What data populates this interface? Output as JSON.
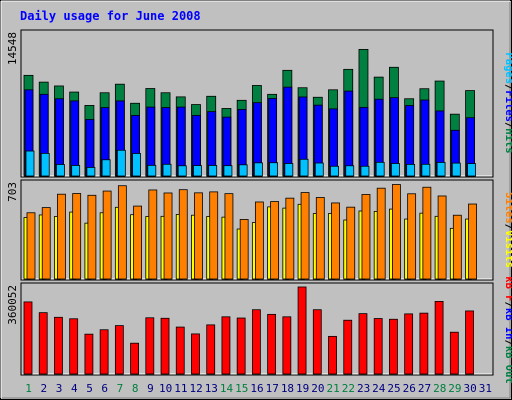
{
  "chart_data": {
    "type": "bar",
    "title": "Daily usage for June 2008",
    "categories": [
      "1",
      "2",
      "3",
      "4",
      "5",
      "6",
      "7",
      "8",
      "9",
      "10",
      "11",
      "12",
      "13",
      "14",
      "15",
      "16",
      "17",
      "18",
      "19",
      "20",
      "21",
      "22",
      "23",
      "24",
      "25",
      "26",
      "27",
      "28",
      "29",
      "30",
      "31"
    ],
    "weekend_days": [
      1,
      7,
      8,
      14,
      15,
      21,
      22,
      28,
      29
    ],
    "panels": {
      "top": {
        "max_label": "14548",
        "ylim": [
          0,
          14548
        ],
        "series": [
          {
            "name": "Hits",
            "color": "#008040",
            "values": [
              10240,
              9550,
              9160,
              8540,
              7180,
              8470,
              9340,
              7400,
              8900,
              8470,
              8050,
              7270,
              8110,
              6870,
              7700,
              9210,
              8310,
              10750,
              8980,
              8010,
              8770,
              10850,
              12880,
              10060,
              11060,
              7860,
              8880,
              9660,
              6290,
              8690
            ]
          },
          {
            "name": "Files",
            "color": "#0000ff",
            "values": [
              8770,
              8310,
              7860,
              7640,
              5750,
              6960,
              7640,
              6160,
              7010,
              6960,
              7010,
              6160,
              6550,
              5990,
              6770,
              7460,
              7890,
              9040,
              8040,
              7210,
              6830,
              8640,
              6980,
              7810,
              7970,
              7170,
              7730,
              6620,
              4650,
              5930
            ]
          },
          {
            "name": "Pages",
            "color": "#00c0ff",
            "values": [
              2540,
              2300,
              1170,
              1070,
              870,
              1650,
              2620,
              2290,
              1080,
              1190,
              1040,
              1060,
              1070,
              1050,
              1140,
              1340,
              1350,
              1270,
              1700,
              1320,
              990,
              1040,
              990,
              1390,
              1270,
              1180,
              1190,
              1380,
              1310,
              1260
            ]
          }
        ]
      },
      "middle": {
        "max_label": "703",
        "ylim": [
          0,
          703
        ],
        "series": [
          {
            "name": "Visits",
            "color": "#ffff00",
            "values": [
              450,
              469,
              458,
              490,
              409,
              485,
              525,
              471,
              458,
              459,
              473,
              467,
              458,
              453,
              366,
              413,
              528,
              519,
              547,
              479,
              480,
              432,
              498,
              495,
              512,
              439,
              482,
              459,
              371,
              439
            ]
          },
          {
            "name": "Sites",
            "color": "#ff8000",
            "values": [
              485,
              523,
              621,
              626,
              613,
              644,
              683,
              534,
              652,
              630,
              654,
              631,
              638,
              625,
              436,
              564,
              567,
              592,
              633,
              597,
              557,
              526,
              619,
              665,
              692,
              624,
              672,
              608,
              467,
              549
            ]
          }
        ]
      },
      "bottom": {
        "max_label": "360052",
        "ylim": [
          0,
          360052
        ],
        "series": [
          {
            "name": "KBytes",
            "color": "#ff0000",
            "values": [
              295000,
              251000,
              232000,
              226000,
              163000,
              181000,
              198000,
              126000,
              230000,
              228000,
              192000,
              164000,
              201000,
              234000,
              229000,
              263000,
              244000,
              234000,
              356000,
              263000,
              154000,
              220000,
              247000,
              227000,
              224000,
              246000,
              249000,
              297000,
              171000,
              258000
            ]
          }
        ]
      }
    },
    "right_labels": {
      "top": [
        {
          "text": "Pages",
          "color": "#00c0ff"
        },
        {
          "text": "/",
          "color": "#000000"
        },
        {
          "text": "Files",
          "color": "#0000ff"
        },
        {
          "text": "/",
          "color": "#000000"
        },
        {
          "text": "Hits",
          "color": "#008040"
        }
      ],
      "middle": [
        {
          "text": "Sites",
          "color": "#ff8000"
        },
        {
          "text": "/",
          "color": "#000000"
        },
        {
          "text": "Visits",
          "color": "#ffff00"
        }
      ],
      "bottom": [
        {
          "text": "kB F",
          "color": "#ff0000"
        },
        {
          "text": "/",
          "color": "#000000"
        },
        {
          "text": "kB In",
          "color": "#0000ff"
        },
        {
          "text": "/",
          "color": "#000000"
        },
        {
          "text": "kB Out",
          "color": "#008040"
        }
      ]
    },
    "colors": {
      "background": "#c0c0c0",
      "title": "#0000ff",
      "weekday_tick": "#000080",
      "weekend_tick": "#008040"
    }
  }
}
